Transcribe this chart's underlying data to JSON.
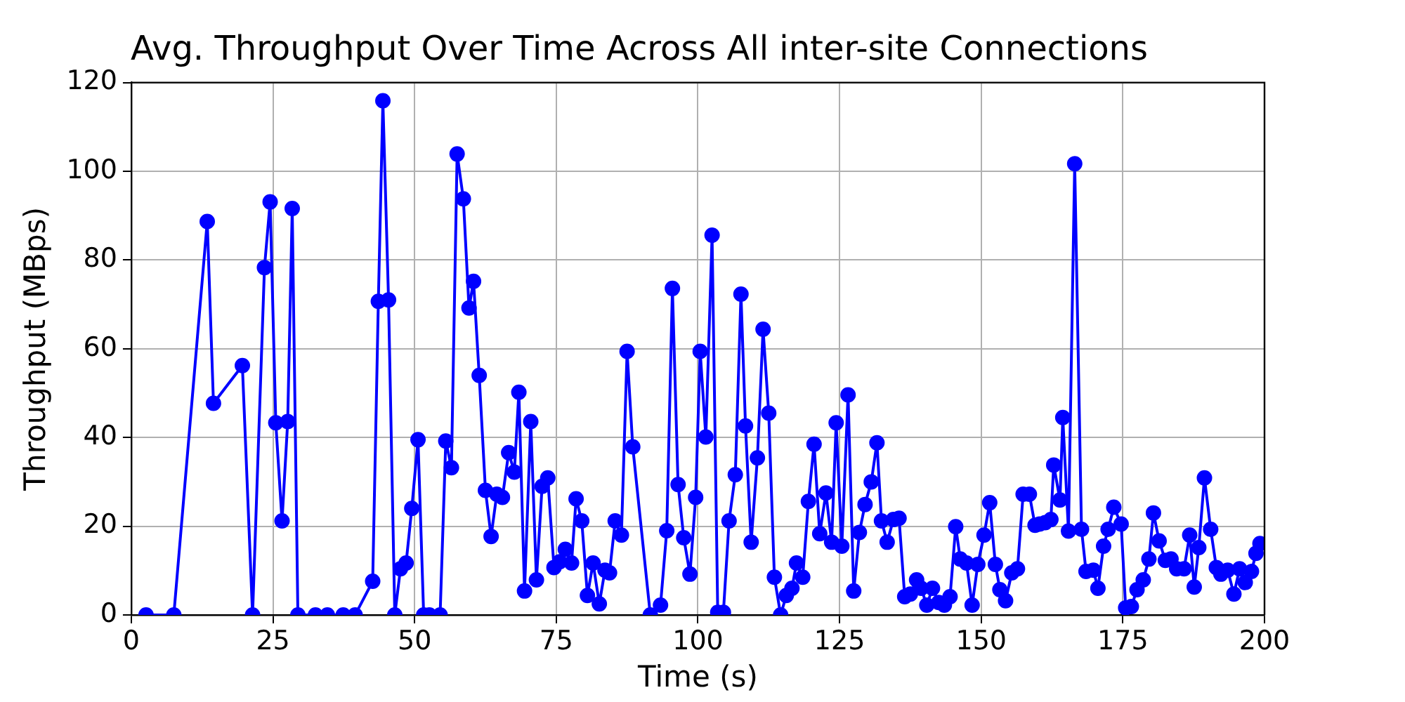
{
  "chart_data": {
    "type": "line",
    "title": "Avg. Throughput Over Time Across All inter-site Connections",
    "xlabel": "Time (s)",
    "ylabel": "Throughput (MBps)",
    "xlim": [
      0,
      200
    ],
    "xticks": [
      0,
      25,
      50,
      75,
      100,
      125,
      150,
      175,
      200
    ],
    "ylim": [
      0,
      120
    ],
    "yticks": [
      0,
      20,
      40,
      60,
      80,
      100,
      120
    ],
    "grid": true,
    "legend": false,
    "marker": "circle",
    "line_style": "solid",
    "series": [
      {
        "color": "#0000ff",
        "x": [
          2.6,
          7.5,
          13.4,
          14.5,
          19.6,
          21.4,
          23.5,
          24.5,
          25.5,
          26.6,
          27.6,
          28.4,
          29.4,
          32.5,
          34.6,
          37.4,
          39.5,
          42.6,
          43.6,
          44.4,
          45.4,
          46.5,
          47.5,
          48.5,
          49.5,
          50.6,
          51.6,
          52.6,
          54.5,
          55.5,
          56.5,
          57.5,
          58.6,
          59.6,
          60.4,
          61.4,
          62.5,
          63.5,
          64.5,
          65.5,
          66.6,
          67.6,
          68.4,
          69.4,
          70.5,
          71.5,
          72.5,
          73.5,
          74.6,
          75.6,
          76.6,
          77.7,
          78.5,
          79.5,
          80.5,
          81.5,
          82.6,
          83.6,
          84.4,
          85.4,
          86.5,
          87.5,
          88.5,
          91.6,
          93.4,
          94.5,
          95.5,
          96.5,
          97.5,
          98.6,
          99.6,
          100.4,
          101.4,
          102.5,
          103.5,
          104.5,
          105.5,
          106.6,
          107.6,
          108.4,
          109.4,
          110.5,
          111.5,
          112.5,
          113.5,
          114.6,
          115.6,
          116.6,
          117.4,
          118.5,
          119.5,
          120.5,
          121.5,
          122.6,
          123.6,
          124.4,
          125.4,
          126.5,
          127.5,
          128.5,
          129.5,
          130.6,
          131.6,
          132.4,
          133.4,
          134.5,
          135.5,
          136.5,
          137.5,
          138.6,
          139.4,
          140.4,
          141.4,
          142.5,
          143.5,
          144.5,
          145.5,
          146.3,
          147.4,
          148.4,
          149.4,
          150.5,
          151.5,
          152.5,
          153.3,
          154.3,
          155.4,
          156.4,
          157.4,
          158.5,
          159.5,
          160.3,
          161.3,
          162.3,
          162.8,
          163.9,
          164.4,
          165.4,
          166.5,
          167.7,
          168.5,
          169.8,
          170.6,
          171.6,
          172.4,
          173.4,
          174.7,
          175.5,
          176.5,
          177.5,
          178.6,
          179.6,
          180.4,
          181.4,
          182.5,
          183.5,
          184.5,
          185.8,
          186.8,
          187.6,
          188.4,
          189.4,
          190.5,
          191.5,
          192.3,
          193.5,
          194.6,
          195.6,
          196.6,
          197.7,
          198.5,
          199.2
        ],
        "values": [
          0,
          0,
          88.7,
          47.7,
          56.2,
          0,
          78.3,
          93.1,
          43.3,
          21.2,
          43.6,
          91.6,
          0,
          0,
          0,
          0,
          0,
          7.6,
          70.7,
          115.9,
          71.0,
          0,
          10.4,
          11.7,
          24,
          39.5,
          0,
          0,
          0,
          39.2,
          33.2,
          103.9,
          93.8,
          69.2,
          75.2,
          54,
          28.1,
          17.7,
          27.2,
          26.5,
          36.6,
          32.2,
          50.2,
          5.4,
          43.6,
          7.9,
          29,
          30.9,
          10.7,
          12,
          14.8,
          11.7,
          26.2,
          21.2,
          4.4,
          11.7,
          2.5,
          10.1,
          9.5,
          21.2,
          18,
          59.4,
          37.9,
          0,
          2.2,
          19,
          73.6,
          29.4,
          17.4,
          9.2,
          26.5,
          59.4,
          40.1,
          85.6,
          0.6,
          0.6,
          21.2,
          31.6,
          72.3,
          42.6,
          16.4,
          35.4,
          64.4,
          45.5,
          8.5,
          0,
          4.4,
          6,
          11.7,
          8.5,
          25.6,
          38.5,
          18.3,
          27.5,
          16.4,
          43.3,
          15.5,
          49.6,
          5.4,
          18.6,
          24.9,
          30,
          38.8,
          21.2,
          16.4,
          21.5,
          21.8,
          4.1,
          4.7,
          7.9,
          6,
          2.2,
          6,
          2.8,
          2.2,
          4.1,
          19.9,
          12.6,
          11.7,
          2.2,
          11.4,
          18,
          25.3,
          11.4,
          5.7,
          3.2,
          9.5,
          10.4,
          27.2,
          27.2,
          20.2,
          20.5,
          20.8,
          21.5,
          33.8,
          25.9,
          44.5,
          18.9,
          101.7,
          19.3,
          9.8,
          10.1,
          6,
          15.5,
          19.3,
          24.3,
          20.5,
          1.6,
          1.9,
          5.7,
          7.9,
          12.6,
          23,
          16.7,
          12.3,
          12.6,
          10.4,
          10.4,
          18,
          6.3,
          15.2,
          30.9,
          19.3,
          10.7,
          9.2,
          10.1,
          4.7,
          10.4,
          7.3,
          9.8,
          13.9,
          16.1
        ]
      }
    ]
  }
}
